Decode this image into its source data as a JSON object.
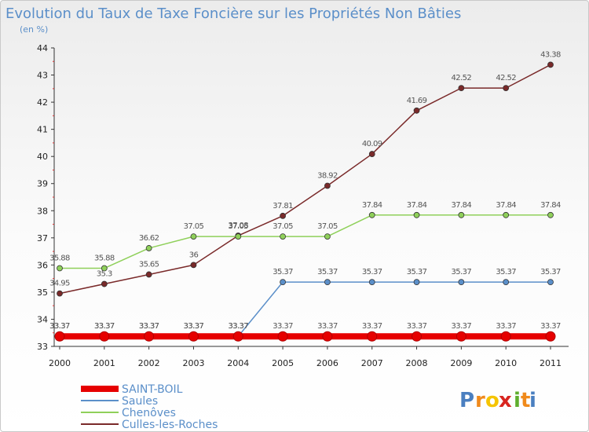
{
  "chart_data": {
    "type": "line",
    "title": "Evolution du Taux de Taxe Foncière sur les Propriétés Non Bâties",
    "subtitle": "(en %)",
    "x": [
      "2000",
      "2001",
      "2002",
      "2003",
      "2004",
      "2005",
      "2006",
      "2007",
      "2008",
      "2009",
      "2010",
      "2011"
    ],
    "ylim": [
      33,
      44
    ],
    "yticks": [
      33,
      34,
      35,
      36,
      37,
      38,
      39,
      40,
      41,
      42,
      43,
      44
    ],
    "grid": false,
    "legend_position": "bottom-left",
    "series": [
      {
        "name": "SAINT-BOIL",
        "color": "#e60000",
        "values": [
          33.37,
          33.37,
          33.37,
          33.37,
          33.37,
          33.37,
          33.37,
          33.37,
          33.37,
          33.37,
          33.37,
          33.37
        ],
        "labels": [
          "33.37",
          "33.37",
          "33.37",
          "33.37",
          "33.37",
          "33.37",
          "33.37",
          "33.37",
          "33.37",
          "33.37",
          "33.37",
          "33.37"
        ]
      },
      {
        "name": "Saules",
        "color": "#5b8fc9",
        "values": [
          33.37,
          33.37,
          33.37,
          33.37,
          33.37,
          35.37,
          35.37,
          35.37,
          35.37,
          35.37,
          35.37,
          35.37
        ],
        "labels": [
          "33.37",
          "33.37",
          "33.37",
          "33.37",
          "33.37",
          "35.37",
          "35.37",
          "35.37",
          "35.37",
          "35.37",
          "35.37",
          "35.37"
        ]
      },
      {
        "name": "Chenôves",
        "color": "#8fd05a",
        "values": [
          35.88,
          35.88,
          36.62,
          37.05,
          37.05,
          37.05,
          37.05,
          37.84,
          37.84,
          37.84,
          37.84,
          37.84
        ],
        "labels": [
          "35.88",
          "35.88",
          "36.62",
          "37.05",
          "37.05",
          "37.05",
          "37.05",
          "37.84",
          "37.84",
          "37.84",
          "37.84",
          "37.84"
        ]
      },
      {
        "name": "Culles-les-Roches",
        "color": "#7a2a2a",
        "values": [
          34.95,
          35.3,
          35.65,
          36,
          37.08,
          37.81,
          38.92,
          40.09,
          41.69,
          42.52,
          42.52,
          43.38
        ],
        "labels": [
          "34.95",
          "35.3",
          "35.65",
          "36",
          "37.08",
          "37.81",
          "38.92",
          "40.09",
          "41.69",
          "42.52",
          "42.52",
          "43.38"
        ]
      }
    ]
  },
  "branding": {
    "letters": [
      "P",
      "r",
      "o",
      "x",
      "i",
      "t",
      "i"
    ],
    "colors": [
      "#4a7fc0",
      "#f08a1c",
      "#f5c400",
      "#d8251f",
      "#5fae2e",
      "#f08a1c",
      "#4a7fc0"
    ]
  }
}
